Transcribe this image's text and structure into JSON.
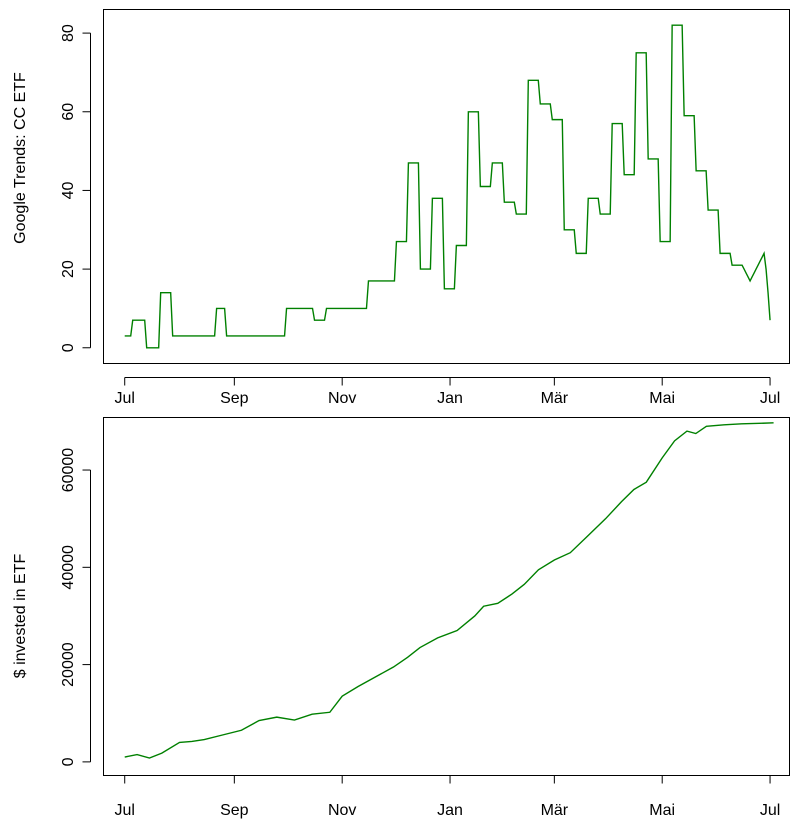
{
  "chart_data": [
    {
      "type": "line",
      "title": "",
      "xlabel": "",
      "ylabel": "Google Trends: CC ETF",
      "grid": false,
      "legend": "none",
      "color": "#008000",
      "x_start": "2017-07-01",
      "x_end": "2018-07-01",
      "xlim": [
        "2017-06-19",
        "2018-07-12"
      ],
      "ylim": [
        -4,
        86
      ],
      "x_ticks": [
        {
          "label": "Jul",
          "date": "2017-07-01"
        },
        {
          "label": "Sep",
          "date": "2017-09-01"
        },
        {
          "label": "Nov",
          "date": "2017-11-01"
        },
        {
          "label": "Jan",
          "date": "2018-01-01"
        },
        {
          "label": "Mär",
          "date": "2018-03-01"
        },
        {
          "label": "Mai",
          "date": "2018-05-01"
        },
        {
          "label": "Jul",
          "date": "2018-07-01"
        }
      ],
      "y_ticks": [
        0,
        20,
        40,
        60,
        80
      ],
      "values": [
        3,
        3,
        3,
        3,
        7,
        7,
        7,
        7,
        7,
        7,
        7,
        0,
        0,
        0,
        0,
        0,
        0,
        0,
        14,
        14,
        14,
        14,
        14,
        14,
        3,
        3,
        3,
        3,
        3,
        3,
        3,
        3,
        3,
        3,
        3,
        3,
        3,
        3,
        3,
        3,
        3,
        3,
        3,
        3,
        3,
        3,
        10,
        10,
        10,
        10,
        10,
        3,
        3,
        3,
        3,
        3,
        3,
        3,
        3,
        3,
        3,
        3,
        3,
        3,
        3,
        3,
        3,
        3,
        3,
        3,
        3,
        3,
        3,
        3,
        3,
        3,
        3,
        3,
        3,
        3,
        3,
        10,
        10,
        10,
        10,
        10,
        10,
        10,
        10,
        10,
        10,
        10,
        10,
        10,
        10,
        7,
        7,
        7,
        7,
        7,
        7,
        10,
        10,
        10,
        10,
        10,
        10,
        10,
        10,
        10,
        10,
        10,
        10,
        10,
        10,
        10,
        10,
        10,
        10,
        10,
        10,
        10,
        17,
        17,
        17,
        17,
        17,
        17,
        17,
        17,
        17,
        17,
        17,
        17,
        17,
        17,
        27,
        27,
        27,
        27,
        27,
        27,
        47,
        47,
        47,
        47,
        47,
        47,
        20,
        20,
        20,
        20,
        20,
        20,
        38,
        38,
        38,
        38,
        38,
        38,
        15,
        15,
        15,
        15,
        15,
        15,
        26,
        26,
        26,
        26,
        26,
        26,
        60,
        60,
        60,
        60,
        60,
        60,
        41,
        41,
        41,
        41,
        41,
        41,
        47,
        47,
        47,
        47,
        47,
        47,
        37,
        37,
        37,
        37,
        37,
        37,
        34,
        34,
        34,
        34,
        34,
        34,
        68,
        68,
        68,
        68,
        68,
        68,
        62,
        62,
        62,
        62,
        62,
        62,
        58,
        58,
        58,
        58,
        58,
        58,
        30,
        30,
        30,
        30,
        30,
        30,
        24,
        24,
        24,
        24,
        24,
        24,
        38,
        38,
        38,
        38,
        38,
        38,
        34,
        34,
        34,
        34,
        34,
        34,
        57,
        57,
        57,
        57,
        57,
        57,
        44,
        44,
        44,
        44,
        44,
        44,
        75,
        75,
        75,
        75,
        75,
        75,
        48,
        48,
        48,
        48,
        48,
        48,
        27,
        27,
        27,
        27,
        27,
        27,
        82,
        82,
        82,
        82,
        82,
        82,
        59,
        59,
        59,
        59,
        59,
        59,
        45,
        45,
        45,
        45,
        45,
        45,
        35,
        35,
        35,
        35,
        35,
        35,
        24,
        24,
        24,
        24,
        24,
        24,
        21,
        21,
        21,
        21,
        21,
        21,
        20,
        19,
        18,
        17,
        18,
        19,
        20,
        21,
        22,
        23,
        24,
        20,
        14,
        7
      ]
    },
    {
      "type": "line",
      "title": "",
      "xlabel": "",
      "ylabel": "$ invested in ETF",
      "grid": false,
      "legend": "none",
      "color": "#008000",
      "x_start": "2017-07-01",
      "x_end": "2018-07-03",
      "xlim": [
        "2017-06-19",
        "2018-07-12"
      ],
      "ylim": [
        -2800,
        70800
      ],
      "x_ticks": [
        {
          "label": "Jul",
          "date": "2017-07-01"
        },
        {
          "label": "Sep",
          "date": "2017-09-01"
        },
        {
          "label": "Nov",
          "date": "2017-11-01"
        },
        {
          "label": "Jan",
          "date": "2018-01-01"
        },
        {
          "label": "Mär",
          "date": "2018-03-01"
        },
        {
          "label": "Mai",
          "date": "2018-05-01"
        },
        {
          "label": "Jul",
          "date": "2018-07-01"
        }
      ],
      "y_ticks": [
        0,
        20000,
        40000,
        60000
      ],
      "points": [
        [
          "2017-07-01",
          1000
        ],
        [
          "2017-07-08",
          1500
        ],
        [
          "2017-07-15",
          800
        ],
        [
          "2017-07-22",
          1800
        ],
        [
          "2017-08-01",
          4000
        ],
        [
          "2017-08-08",
          4200
        ],
        [
          "2017-08-15",
          4600
        ],
        [
          "2017-08-25",
          5500
        ],
        [
          "2017-09-05",
          6500
        ],
        [
          "2017-09-15",
          8500
        ],
        [
          "2017-09-25",
          9200
        ],
        [
          "2017-10-05",
          8600
        ],
        [
          "2017-10-15",
          9800
        ],
        [
          "2017-10-25",
          10200
        ],
        [
          "2017-11-01",
          13500
        ],
        [
          "2017-11-10",
          15500
        ],
        [
          "2017-11-20",
          17500
        ],
        [
          "2017-11-30",
          19500
        ],
        [
          "2017-12-08",
          21500
        ],
        [
          "2017-12-15",
          23500
        ],
        [
          "2017-12-25",
          25500
        ],
        [
          "2018-01-05",
          27000
        ],
        [
          "2018-01-15",
          30000
        ],
        [
          "2018-01-20",
          32000
        ],
        [
          "2018-01-28",
          32600
        ],
        [
          "2018-02-05",
          34500
        ],
        [
          "2018-02-12",
          36500
        ],
        [
          "2018-02-20",
          39500
        ],
        [
          "2018-03-01",
          41500
        ],
        [
          "2018-03-10",
          43000
        ],
        [
          "2018-03-20",
          46500
        ],
        [
          "2018-03-30",
          50000
        ],
        [
          "2018-04-08",
          53500
        ],
        [
          "2018-04-15",
          56000
        ],
        [
          "2018-04-22",
          57500
        ],
        [
          "2018-05-01",
          62500
        ],
        [
          "2018-05-08",
          66000
        ],
        [
          "2018-05-15",
          68000
        ],
        [
          "2018-05-20",
          67500
        ],
        [
          "2018-05-26",
          69000
        ],
        [
          "2018-06-05",
          69300
        ],
        [
          "2018-06-15",
          69500
        ],
        [
          "2018-06-25",
          69600
        ],
        [
          "2018-07-03",
          69700
        ]
      ]
    }
  ]
}
